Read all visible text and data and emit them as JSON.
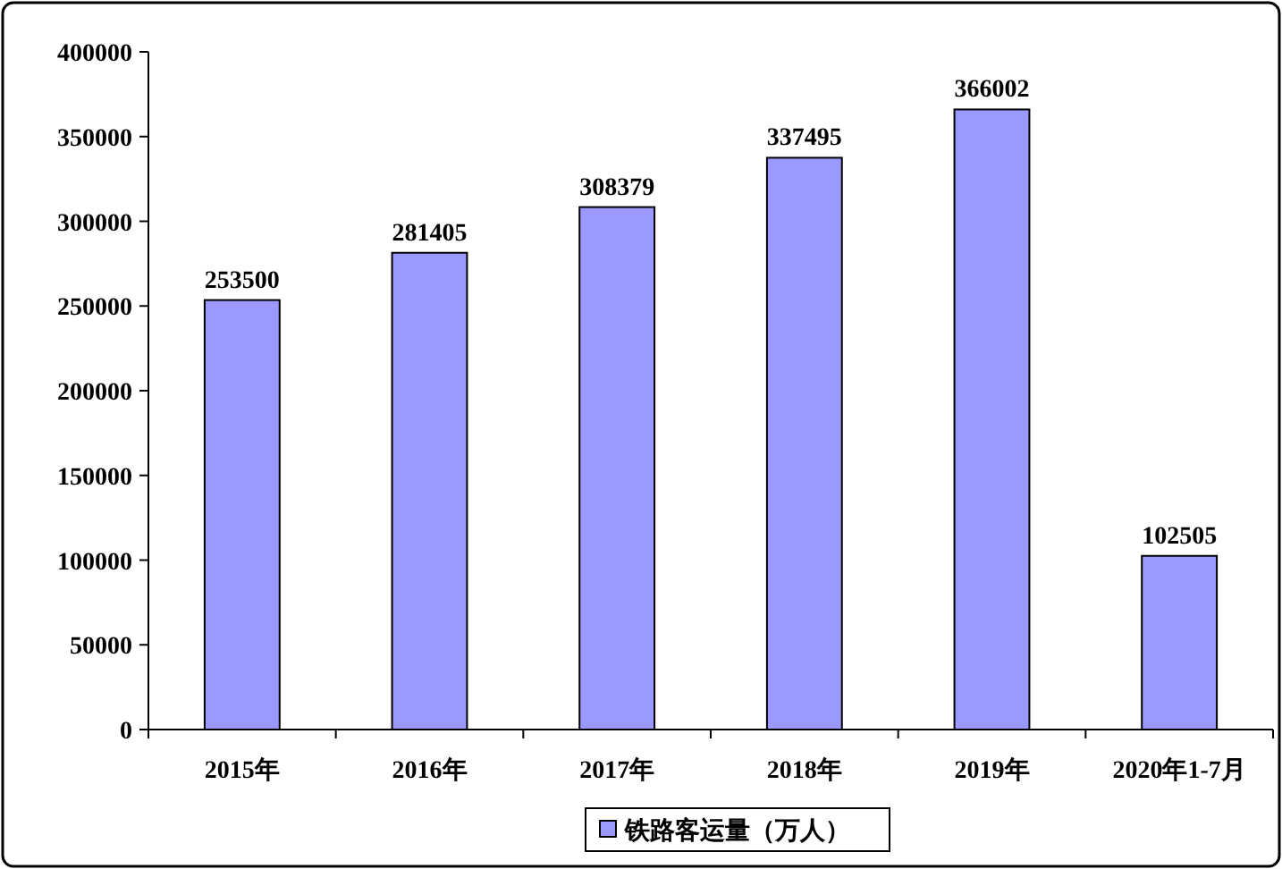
{
  "chart_data": {
    "type": "bar",
    "categories": [
      "2015年",
      "2016年",
      "2017年",
      "2018年",
      "2019年",
      "2020年1-7月"
    ],
    "series": [
      {
        "name": "铁路客运量（万人）",
        "color": "#9999ff",
        "values": [
          253500,
          281405,
          308379,
          337495,
          366002,
          102505
        ]
      }
    ],
    "ylim": [
      0,
      400000
    ],
    "yticks": [
      0,
      50000,
      100000,
      150000,
      200000,
      250000,
      300000,
      350000,
      400000
    ],
    "data_labels": true,
    "legend": "bottom"
  }
}
